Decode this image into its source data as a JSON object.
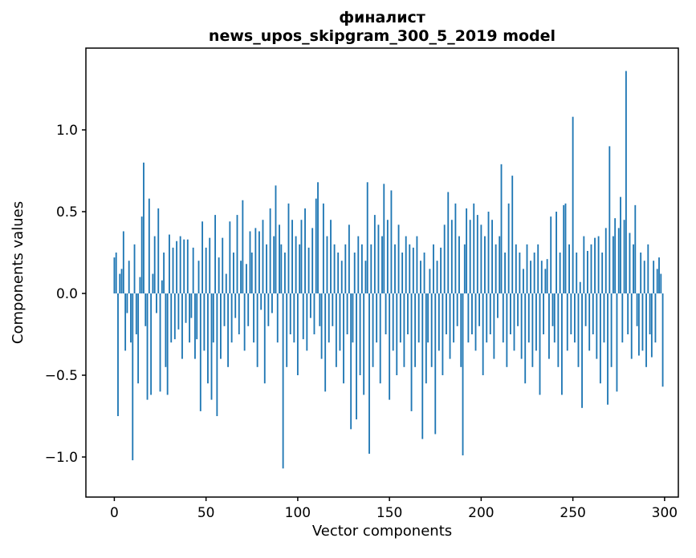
{
  "figure": {
    "background": "#ffffff"
  },
  "chart_data": {
    "type": "bar",
    "title_line1": "финалист",
    "title_line2": "news_upos_skipgram_300_5_2019 model",
    "xlabel": "Vector components",
    "ylabel": "Components values",
    "bar_color": "#1f77b4",
    "axis_color": "#000000",
    "x_ticks": [
      0,
      50,
      100,
      150,
      200,
      250,
      300
    ],
    "x_tick_labels": [
      "0",
      "50",
      "100",
      "150",
      "200",
      "250",
      "300"
    ],
    "y_ticks": [
      -1.0,
      -0.5,
      0.0,
      0.5,
      1.0
    ],
    "y_tick_labels": [
      "−1.0",
      "−0.5",
      "0.0",
      "0.5",
      "1.0"
    ],
    "xlim": [
      -15.5,
      307.5
    ],
    "ylim": [
      -1.245,
      1.5
    ],
    "n_components": 300,
    "values": [
      0.22,
      0.25,
      -0.75,
      0.12,
      0.15,
      0.38,
      -0.35,
      -0.12,
      0.2,
      -0.3,
      -1.02,
      0.3,
      -0.25,
      -0.55,
      0.1,
      0.47,
      0.8,
      -0.2,
      -0.65,
      0.58,
      -0.62,
      0.12,
      0.35,
      -0.12,
      0.52,
      -0.6,
      0.08,
      0.25,
      -0.45,
      -0.62,
      0.36,
      -0.3,
      0.28,
      -0.28,
      0.32,
      -0.22,
      0.35,
      -0.4,
      0.33,
      -0.18,
      0.33,
      -0.3,
      -0.15,
      0.28,
      -0.4,
      -0.28,
      0.2,
      -0.72,
      0.44,
      -0.35,
      0.28,
      -0.55,
      0.34,
      -0.65,
      -0.3,
      0.48,
      -0.75,
      0.22,
      -0.4,
      0.34,
      -0.2,
      0.12,
      -0.45,
      0.44,
      -0.3,
      0.25,
      -0.15,
      0.48,
      -0.25,
      0.2,
      0.57,
      -0.35,
      0.18,
      -0.2,
      0.38,
      0.25,
      -0.3,
      0.4,
      -0.45,
      0.38,
      -0.1,
      0.45,
      -0.55,
      0.3,
      -0.2,
      0.52,
      -0.12,
      0.35,
      0.66,
      -0.3,
      0.42,
      0.3,
      -1.07,
      0.25,
      -0.45,
      0.55,
      -0.25,
      0.45,
      -0.3,
      0.35,
      -0.5,
      0.3,
      0.45,
      -0.28,
      0.52,
      -0.35,
      0.28,
      -0.15,
      0.4,
      -0.25,
      0.58,
      0.68,
      -0.2,
      -0.4,
      0.55,
      -0.6,
      0.35,
      -0.3,
      0.45,
      -0.2,
      0.3,
      -0.45,
      0.25,
      -0.35,
      0.2,
      -0.55,
      0.3,
      -0.25,
      0.42,
      -0.83,
      -0.3,
      0.25,
      -0.77,
      0.35,
      -0.5,
      0.3,
      -0.62,
      0.2,
      0.68,
      -0.98,
      0.3,
      -0.45,
      0.48,
      -0.3,
      0.42,
      -0.55,
      0.35,
      0.67,
      -0.25,
      0.45,
      -0.65,
      0.63,
      -0.35,
      0.3,
      -0.5,
      0.42,
      -0.3,
      0.25,
      -0.45,
      0.35,
      -0.25,
      0.3,
      -0.72,
      0.28,
      -0.45,
      0.35,
      -0.3,
      0.2,
      -0.89,
      0.25,
      -0.55,
      -0.3,
      0.15,
      -0.45,
      0.3,
      -0.86,
      0.2,
      -0.35,
      0.28,
      -0.5,
      0.42,
      -0.25,
      0.62,
      -0.4,
      0.45,
      -0.3,
      0.55,
      -0.2,
      0.35,
      -0.45,
      -0.99,
      0.3,
      0.52,
      -0.3,
      0.45,
      -0.25,
      0.55,
      -0.35,
      0.48,
      -0.2,
      0.42,
      -0.5,
      0.35,
      -0.3,
      0.5,
      -0.25,
      0.45,
      -0.4,
      0.3,
      -0.15,
      0.35,
      0.79,
      -0.3,
      0.25,
      -0.45,
      0.55,
      -0.25,
      0.72,
      -0.35,
      0.3,
      -0.2,
      0.25,
      -0.4,
      0.15,
      -0.55,
      0.3,
      -0.3,
      0.2,
      -0.45,
      0.25,
      -0.35,
      0.3,
      -0.62,
      0.2,
      -0.25,
      0.15,
      0.21,
      -0.4,
      0.47,
      -0.2,
      -0.3,
      0.5,
      -0.45,
      0.25,
      -0.62,
      0.54,
      0.55,
      -0.35,
      0.3,
      -0.25,
      1.08,
      -0.3,
      0.25,
      -0.45,
      0.07,
      -0.7,
      0.35,
      -0.2,
      0.26,
      -0.35,
      0.3,
      -0.25,
      0.34,
      -0.4,
      0.35,
      -0.55,
      0.25,
      -0.3,
      0.4,
      -0.68,
      0.9,
      -0.45,
      0.35,
      0.46,
      -0.6,
      0.4,
      0.59,
      -0.3,
      0.45,
      1.36,
      -0.25,
      0.37,
      -0.4,
      0.3,
      0.54,
      -0.2,
      -0.38,
      0.25,
      -0.35,
      0.2,
      -0.45,
      0.3,
      -0.25,
      -0.39,
      0.2,
      -0.3,
      0.15,
      0.22,
      0.12,
      -0.57
    ]
  }
}
